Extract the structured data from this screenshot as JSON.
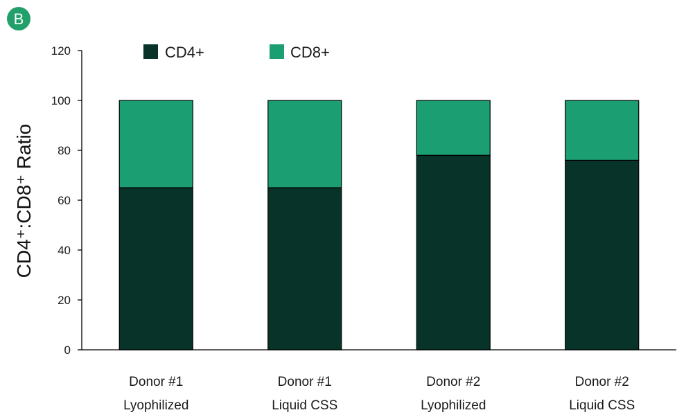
{
  "panel_label": "B",
  "colors": {
    "cd4": "#073328",
    "cd8": "#1a9e72",
    "badge": "#22a06b"
  },
  "chart_data": {
    "type": "bar",
    "stacked": true,
    "categories": [
      [
        "Donor #1",
        "Lyophilized"
      ],
      [
        "Donor #1",
        "Liquid CSS"
      ],
      [
        "Donor #2",
        "Lyophilized"
      ],
      [
        "Donor #2",
        "Liquid CSS"
      ]
    ],
    "series": [
      {
        "name": "CD4+",
        "values": [
          65,
          65,
          78,
          76
        ]
      },
      {
        "name": "CD8+",
        "values": [
          35,
          35,
          22,
          24
        ]
      }
    ],
    "ylabel": "CD4⁺:CD8⁺ Ratio",
    "ylim": [
      0,
      120
    ],
    "yticks": [
      0,
      20,
      40,
      60,
      80,
      100,
      120
    ],
    "legend": "top",
    "grid": false
  }
}
